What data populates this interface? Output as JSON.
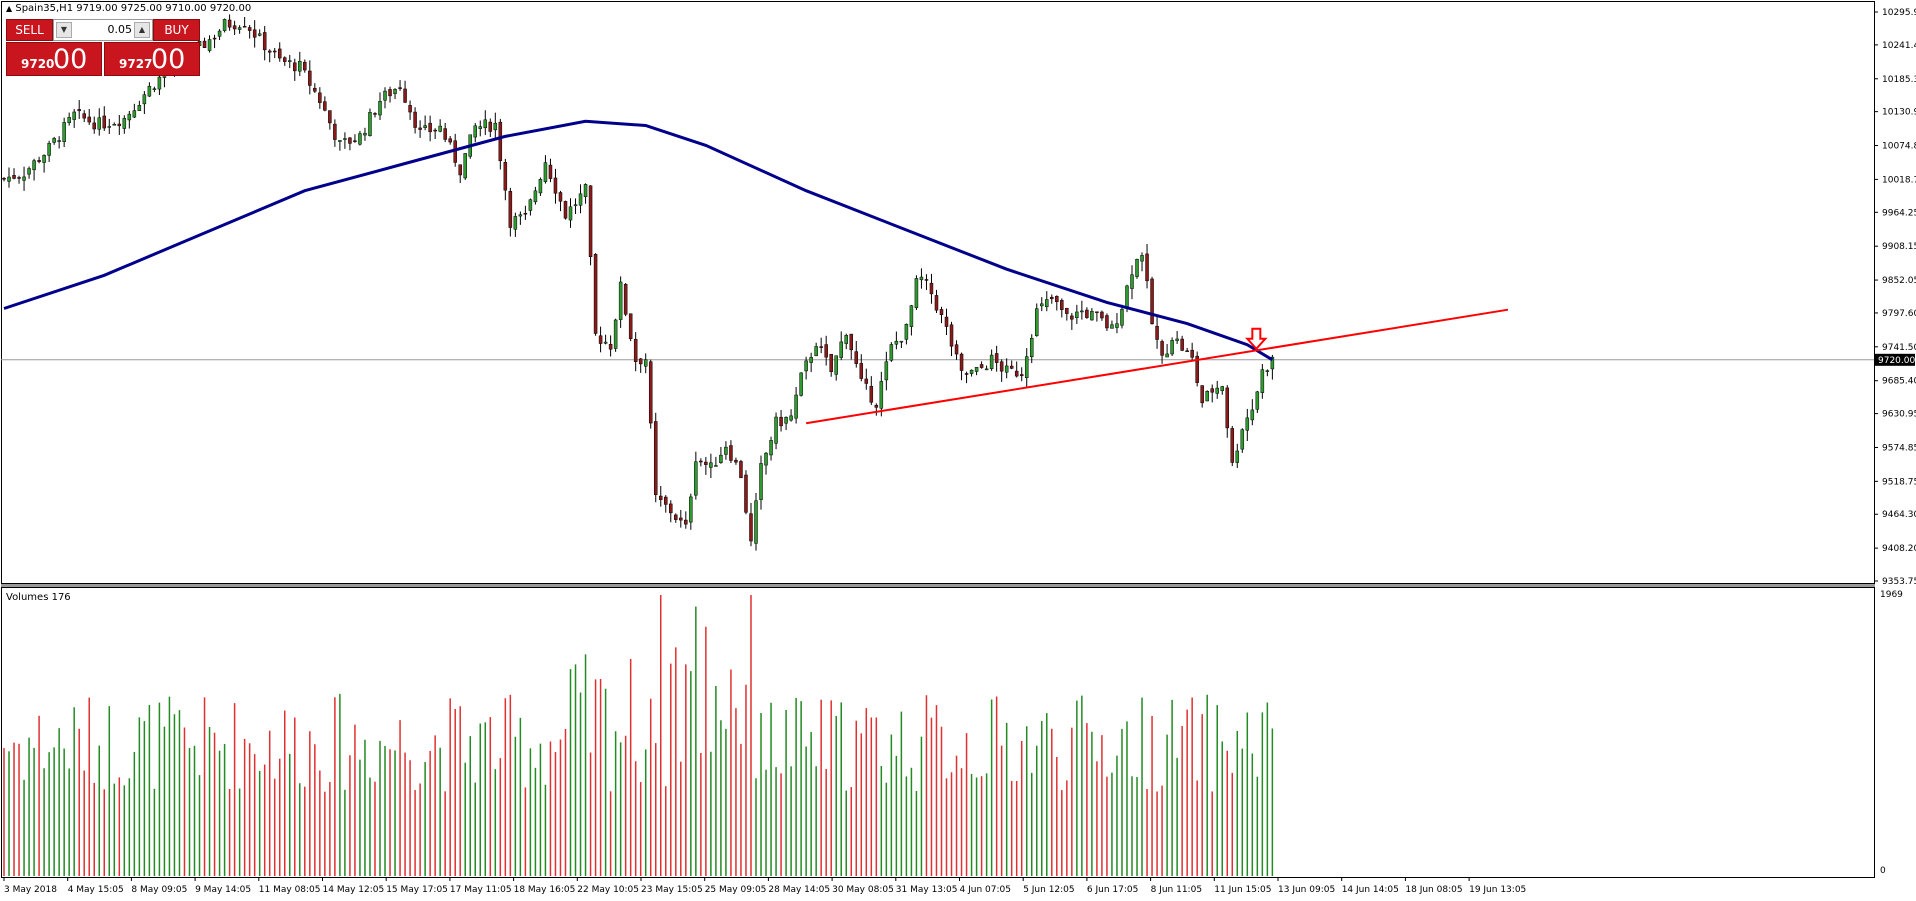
{
  "window": {
    "title": "Spain35,H1  9719.00 9725.00 9710.00 9720.00"
  },
  "trade_panel": {
    "sell_label": "SELL",
    "buy_label": "BUY",
    "lot_value": "0.05",
    "sell_price_small": "9720",
    "sell_price_big": "00",
    "buy_price_small": "9727",
    "buy_price_big": "00",
    "button_color": "#c9151d"
  },
  "volume_panel": {
    "title": "Volumes 176",
    "axis_top_label": "1969",
    "axis_bottom_label": "0"
  },
  "current_price_label": "9720.00",
  "chart_data": [
    {
      "type": "candlestick",
      "symbol": "Spain35",
      "timeframe": "H1",
      "ohlc_last": {
        "open": 9719.0,
        "high": 9725.0,
        "low": 9710.0,
        "close": 9720.0
      },
      "ylim": [
        9353.75,
        10320
      ],
      "y_ticks": [
        "10295.90",
        "10241.45",
        "10185.35",
        "10130.90",
        "10074.80",
        "10018.70",
        "9964.25",
        "9908.15",
        "9852.05",
        "9797.60",
        "9741.50",
        "9685.40",
        "9630.95",
        "9574.85",
        "9518.75",
        "9464.30",
        "9408.20",
        "9353.75"
      ],
      "x_ticks": [
        "3 May 2018",
        "4 May 15:05",
        "8 May 09:05",
        "9 May 14:05",
        "11 May 08:05",
        "14 May 12:05",
        "15 May 17:05",
        "17 May 11:05",
        "18 May 16:05",
        "22 May 10:05",
        "23 May 15:05",
        "25 May 09:05",
        "28 May 14:05",
        "30 May 08:05",
        "31 May 13:05",
        "4 Jun 07:05",
        "5 Jun 12:05",
        "6 Jun 17:05",
        "8 Jun 11:05",
        "11 Jun 15:05",
        "13 Jun 09:05",
        "14 Jun 14:05",
        "18 Jun 08:05",
        "19 Jun 13:05"
      ],
      "close_path": [
        {
          "x": 0,
          "y": 10020
        },
        {
          "x": 20,
          "y": 10030
        },
        {
          "x": 45,
          "y": 10070
        },
        {
          "x": 70,
          "y": 10125
        },
        {
          "x": 95,
          "y": 10110
        },
        {
          "x": 120,
          "y": 10120
        },
        {
          "x": 145,
          "y": 10170
        },
        {
          "x": 170,
          "y": 10210
        },
        {
          "x": 190,
          "y": 10230
        },
        {
          "x": 205,
          "y": 10250
        },
        {
          "x": 220,
          "y": 10275
        },
        {
          "x": 240,
          "y": 10280
        },
        {
          "x": 255,
          "y": 10250
        },
        {
          "x": 275,
          "y": 10215
        },
        {
          "x": 295,
          "y": 10205
        },
        {
          "x": 315,
          "y": 10150
        },
        {
          "x": 335,
          "y": 10075
        },
        {
          "x": 355,
          "y": 10090
        },
        {
          "x": 375,
          "y": 10150
        },
        {
          "x": 395,
          "y": 10175
        },
        {
          "x": 415,
          "y": 10095
        },
        {
          "x": 435,
          "y": 10105
        },
        {
          "x": 455,
          "y": 10035
        },
        {
          "x": 470,
          "y": 10105
        },
        {
          "x": 490,
          "y": 10110
        },
        {
          "x": 505,
          "y": 9950
        },
        {
          "x": 520,
          "y": 9955
        },
        {
          "x": 540,
          "y": 10050
        },
        {
          "x": 560,
          "y": 9960
        },
        {
          "x": 580,
          "y": 10000
        },
        {
          "x": 590,
          "y": 9760
        },
        {
          "x": 605,
          "y": 9745
        },
        {
          "x": 615,
          "y": 9840
        },
        {
          "x": 630,
          "y": 9720
        },
        {
          "x": 640,
          "y": 9722
        },
        {
          "x": 650,
          "y": 9490
        },
        {
          "x": 665,
          "y": 9470
        },
        {
          "x": 680,
          "y": 9440
        },
        {
          "x": 690,
          "y": 9560
        },
        {
          "x": 705,
          "y": 9540
        },
        {
          "x": 720,
          "y": 9580
        },
        {
          "x": 735,
          "y": 9530
        },
        {
          "x": 745,
          "y": 9415
        },
        {
          "x": 755,
          "y": 9540
        },
        {
          "x": 770,
          "y": 9615
        },
        {
          "x": 785,
          "y": 9625
        },
        {
          "x": 795,
          "y": 9690
        },
        {
          "x": 810,
          "y": 9750
        },
        {
          "x": 825,
          "y": 9700
        },
        {
          "x": 840,
          "y": 9770
        },
        {
          "x": 855,
          "y": 9680
        },
        {
          "x": 870,
          "y": 9650
        },
        {
          "x": 885,
          "y": 9740
        },
        {
          "x": 900,
          "y": 9770
        },
        {
          "x": 912,
          "y": 9860
        },
        {
          "x": 925,
          "y": 9830
        },
        {
          "x": 940,
          "y": 9770
        },
        {
          "x": 955,
          "y": 9695
        },
        {
          "x": 970,
          "y": 9700
        },
        {
          "x": 985,
          "y": 9720
        },
        {
          "x": 1000,
          "y": 9700
        },
        {
          "x": 1015,
          "y": 9700
        },
        {
          "x": 1030,
          "y": 9800
        },
        {
          "x": 1045,
          "y": 9820
        },
        {
          "x": 1060,
          "y": 9790
        },
        {
          "x": 1075,
          "y": 9800
        },
        {
          "x": 1090,
          "y": 9790
        },
        {
          "x": 1105,
          "y": 9770
        },
        {
          "x": 1115,
          "y": 9810
        },
        {
          "x": 1125,
          "y": 9870
        },
        {
          "x": 1135,
          "y": 9900
        },
        {
          "x": 1145,
          "y": 9780
        },
        {
          "x": 1155,
          "y": 9720
        },
        {
          "x": 1165,
          "y": 9760
        },
        {
          "x": 1175,
          "y": 9740
        },
        {
          "x": 1185,
          "y": 9720
        },
        {
          "x": 1195,
          "y": 9650
        },
        {
          "x": 1205,
          "y": 9670
        },
        {
          "x": 1215,
          "y": 9680
        },
        {
          "x": 1225,
          "y": 9545
        },
        {
          "x": 1235,
          "y": 9610
        },
        {
          "x": 1245,
          "y": 9640
        },
        {
          "x": 1255,
          "y": 9700
        },
        {
          "x": 1265,
          "y": 9720
        }
      ],
      "moving_average": [
        {
          "x": 0,
          "y": 9805
        },
        {
          "x": 100,
          "y": 9860
        },
        {
          "x": 200,
          "y": 9930
        },
        {
          "x": 300,
          "y": 10000
        },
        {
          "x": 400,
          "y": 10045
        },
        {
          "x": 500,
          "y": 10090
        },
        {
          "x": 580,
          "y": 10115
        },
        {
          "x": 640,
          "y": 10108
        },
        {
          "x": 700,
          "y": 10075
        },
        {
          "x": 800,
          "y": 10000
        },
        {
          "x": 900,
          "y": 9935
        },
        {
          "x": 1000,
          "y": 9870
        },
        {
          "x": 1100,
          "y": 9815
        },
        {
          "x": 1180,
          "y": 9780
        },
        {
          "x": 1240,
          "y": 9745
        },
        {
          "x": 1265,
          "y": 9720
        }
      ],
      "moving_average_color": "#00008b",
      "trendline": {
        "start": {
          "x": 800,
          "y": 9615
        },
        "end": {
          "x": 1500,
          "y": 9803
        },
        "color": "#ff0000"
      },
      "signal_arrow": {
        "x": 1249,
        "y": 9735,
        "direction": "down",
        "color": "#ff0000"
      },
      "up_color": "#2e9b2e",
      "down_color": "#8b1a1a"
    },
    {
      "type": "bar",
      "title": "Volumes 176",
      "ylim": [
        0,
        1969
      ],
      "up_color": "#228b22",
      "down_color": "#e03030"
    }
  ]
}
